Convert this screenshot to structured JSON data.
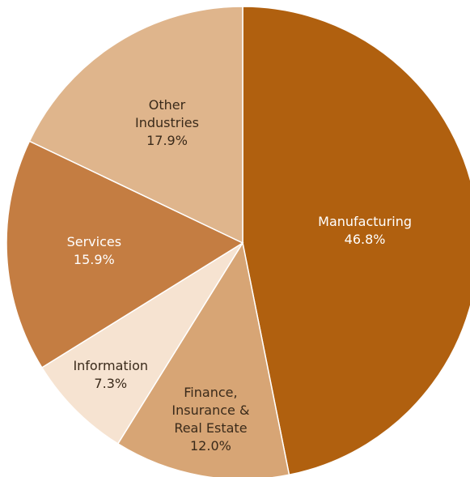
{
  "chart_data": {
    "type": "pie",
    "categories": [
      "Manufacturing",
      "Finance, Insurance & Real Estate",
      "Information",
      "Services",
      "Other Industries"
    ],
    "values": [
      46.8,
      12.0,
      7.3,
      15.9,
      17.9
    ],
    "value_labels": [
      "46.8%",
      "12.0%",
      "7.3%",
      "15.9%",
      "17.9%"
    ],
    "colors": [
      "#b0600f",
      "#d7a575",
      "#f6e3d1",
      "#c47d42",
      "#dfb58c"
    ]
  }
}
